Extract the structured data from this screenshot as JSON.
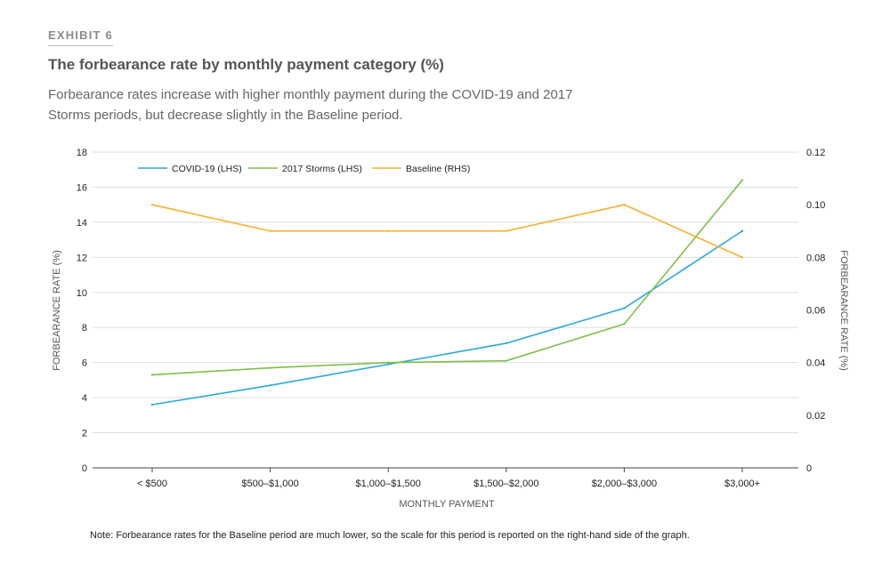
{
  "header": {
    "exhibit_label": "EXHIBIT 6",
    "title": "The forbearance rate by monthly payment category (%)",
    "subtitle": "Forbearance rates increase with higher monthly payment during the COVID-19 and 2017 Storms periods, but decrease slightly in the Baseline period."
  },
  "note": "Note: Forbearance rates for the Baseline period are much lower, so the scale for this period is reported on the right-hand side of the graph.",
  "chart_data": {
    "type": "line",
    "xlabel": "MONTHLY PAYMENT",
    "ylabel_left": "FORBEARANCE RATE (%)",
    "ylabel_right": "FORBEARANCE RATE (%)",
    "categories": [
      "< $500",
      "$500–$1,000",
      "$1,000–$1,500",
      "$1,500–$2,000",
      "$2,000–$3,000",
      "$3,000+"
    ],
    "ylim_left": [
      0,
      18
    ],
    "yticks_left": [
      0,
      2,
      4,
      6,
      8,
      10,
      12,
      14,
      16,
      18
    ],
    "ylim_right": [
      0,
      0.12
    ],
    "yticks_right": [
      "0",
      "0.02",
      "0.04",
      "0.06",
      "0.08",
      "0.10",
      "0.12"
    ],
    "yticks_right_values": [
      0,
      0.02,
      0.04,
      0.06,
      0.08,
      0.1,
      0.12
    ],
    "grid": true,
    "legend_position": "top-left",
    "series": [
      {
        "name": "COVID-19 (LHS)",
        "axis": "left",
        "color": "#2aa8dc",
        "values": [
          3.6,
          4.7,
          5.9,
          7.1,
          9.1,
          13.5
        ]
      },
      {
        "name": "2017 Storms (LHS)",
        "axis": "left",
        "color": "#7cc04a",
        "values": [
          5.3,
          5.7,
          6.0,
          6.1,
          8.2,
          16.4
        ]
      },
      {
        "name": "Baseline (RHS)",
        "axis": "right",
        "color": "#f5b12e",
        "values": [
          0.1,
          0.09,
          0.09,
          0.09,
          0.1,
          0.08
        ]
      }
    ]
  }
}
